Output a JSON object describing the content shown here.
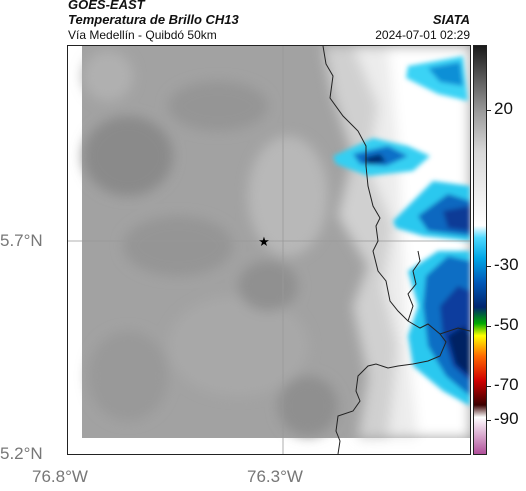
{
  "header": {
    "satellite": "GOES-EAST",
    "product": "Temperatura de Brillo CH13",
    "route": "Vía Medellín - Quibdó 50km",
    "brand": "SIATA",
    "datetime": "2024-07-01 02:29"
  },
  "axes": {
    "y_ticks": [
      "5.7°N",
      "5.2°N"
    ],
    "x_ticks": [
      "76.8°W",
      "76.3°W"
    ]
  },
  "colorbar": {
    "ticks": [
      "20",
      "-30",
      "-50",
      "-70",
      "-90"
    ],
    "stops": [
      "#1a1a1a",
      "#5a5a5a",
      "#9a9a9a",
      "#d8d8d8",
      "#ffffff",
      "#4dd9ff",
      "#00a6e6",
      "#0058b8",
      "#00256e",
      "#00aa00",
      "#ffff00",
      "#ff6a00",
      "#d00000",
      "#3a0000",
      "#ffffff",
      "#b0509a"
    ]
  },
  "map": {
    "marker": "star-icon",
    "grid_lines": true
  }
}
